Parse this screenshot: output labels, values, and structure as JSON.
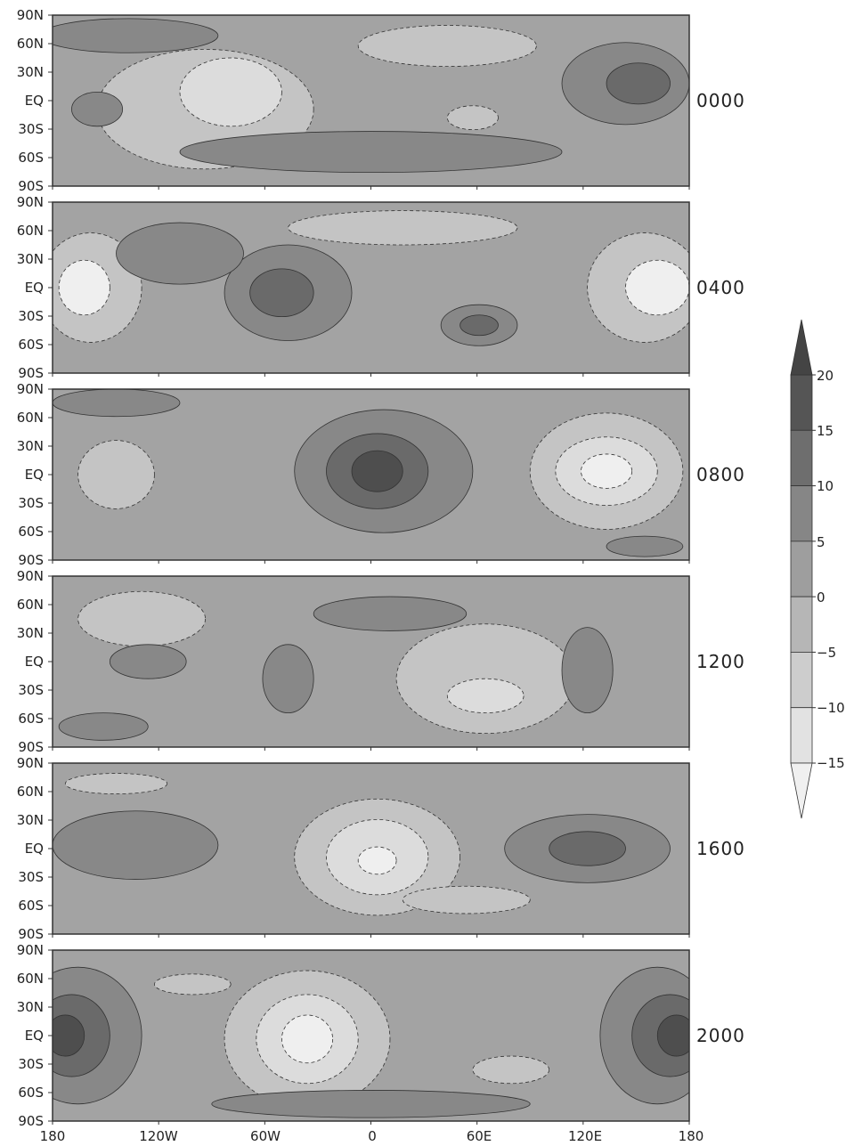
{
  "chart_data": {
    "type": "heatmap",
    "title": "",
    "panels": [
      {
        "label": "0000"
      },
      {
        "label": "0400"
      },
      {
        "label": "0800"
      },
      {
        "label": "1200"
      },
      {
        "label": "1600"
      },
      {
        "label": "2000"
      }
    ],
    "y_ticks": [
      "90N",
      "60N",
      "30N",
      "EQ",
      "30S",
      "60S",
      "90S"
    ],
    "x_ticks": [
      "180",
      "120W",
      "60W",
      "0",
      "60E",
      "120E",
      "180"
    ],
    "xlim": [
      -180,
      180
    ],
    "ylim": [
      -90,
      90
    ],
    "colorbar": {
      "ticks": [
        "20",
        "15",
        "10",
        "5",
        "0",
        "−5",
        "−10",
        "−15"
      ],
      "range": [
        -20,
        25
      ],
      "extend": "both",
      "negative_contours": "dashed"
    },
    "colors": {
      "lightest": "#ececec",
      "darkest": "#4a4a4a",
      "frame": "#333333"
    }
  }
}
